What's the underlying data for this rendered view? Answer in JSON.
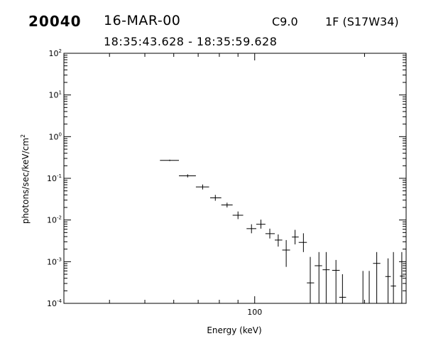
{
  "header": {
    "event_id": "20040",
    "date": "16-MAR-00",
    "goes_class": "C9.0",
    "flare_location": "1F (S17W34)",
    "time_range": "18:35:43.628 - 18:35:59.628"
  },
  "chart_data": {
    "type": "scatter",
    "style": "error-bars",
    "xlabel": "Energy (keV)",
    "ylabel": "photons/sec/keV/cm",
    "ylabel_superscript": "2",
    "x_scale": "log",
    "y_scale": "log",
    "xlim": [
      30,
      260
    ],
    "ylim": [
      0.0001,
      100
    ],
    "x_tick_labels": [
      {
        "value": 100,
        "label": "100"
      }
    ],
    "y_tick_labels": [
      {
        "value": 100,
        "base": "10",
        "exp": "2"
      },
      {
        "value": 10,
        "base": "10",
        "exp": "1"
      },
      {
        "value": 1,
        "base": "10",
        "exp": "0"
      },
      {
        "value": 0.1,
        "base": "10",
        "exp": "-1"
      },
      {
        "value": 0.01,
        "base": "10",
        "exp": "-2"
      },
      {
        "value": 0.001,
        "base": "10",
        "exp": "-3"
      },
      {
        "value": 0.0001,
        "base": "10",
        "exp": "-4"
      }
    ],
    "grid": false,
    "points": [
      {
        "x": 58.5,
        "x_lo": 55.0,
        "x_hi": 62.0,
        "y": 0.27,
        "y_lo": 0.26,
        "y_hi": 0.28
      },
      {
        "x": 65.5,
        "x_lo": 62.0,
        "x_hi": 69.0,
        "y": 0.115,
        "y_lo": 0.105,
        "y_hi": 0.125
      },
      {
        "x": 72.0,
        "x_lo": 69.0,
        "x_hi": 75.0,
        "y": 0.062,
        "y_lo": 0.054,
        "y_hi": 0.071
      },
      {
        "x": 78.0,
        "x_lo": 75.5,
        "x_hi": 81.0,
        "y": 0.034,
        "y_lo": 0.029,
        "y_hi": 0.04
      },
      {
        "x": 84.0,
        "x_lo": 81.0,
        "x_hi": 87.0,
        "y": 0.023,
        "y_lo": 0.02,
        "y_hi": 0.026
      },
      {
        "x": 90.0,
        "x_lo": 87.0,
        "x_hi": 93.0,
        "y": 0.013,
        "y_lo": 0.0105,
        "y_hi": 0.016
      },
      {
        "x": 98.0,
        "x_lo": 95.0,
        "x_hi": 101.0,
        "y": 0.0062,
        "y_lo": 0.0048,
        "y_hi": 0.0079
      },
      {
        "x": 104.0,
        "x_lo": 101.0,
        "x_hi": 107.0,
        "y": 0.0079,
        "y_lo": 0.0062,
        "y_hi": 0.0102
      },
      {
        "x": 110.0,
        "x_lo": 107.0,
        "x_hi": 113.5,
        "y": 0.0047,
        "y_lo": 0.0036,
        "y_hi": 0.0062
      },
      {
        "x": 116.0,
        "x_lo": 113.5,
        "x_hi": 119.0,
        "y": 0.0033,
        "y_lo": 0.0023,
        "y_hi": 0.0045
      },
      {
        "x": 122.0,
        "x_lo": 119.0,
        "x_hi": 125.0,
        "y": 0.0019,
        "y_lo": 0.00075,
        "y_hi": 0.0033
      },
      {
        "x": 129.0,
        "x_lo": 126.5,
        "x_hi": 132.0,
        "y": 0.0039,
        "y_lo": 0.0026,
        "y_hi": 0.0058
      },
      {
        "x": 136.0,
        "x_lo": 132.0,
        "x_hi": 139.0,
        "y": 0.0029,
        "y_lo": 0.0017,
        "y_hi": 0.0048
      },
      {
        "x": 142.0,
        "x_lo": 139.0,
        "x_hi": 145.5,
        "y": 0.00031,
        "y_lo": 0.0001,
        "y_hi": 0.0013
      },
      {
        "x": 150.0,
        "x_lo": 146.0,
        "x_hi": 153.0,
        "y": 0.0008,
        "y_lo": 0.0001,
        "y_hi": 0.0017
      },
      {
        "x": 157.0,
        "x_lo": 153.5,
        "x_hi": 160.5,
        "y": 0.00064,
        "y_lo": 0.0001,
        "y_hi": 0.0017
      },
      {
        "x": 167.0,
        "x_lo": 163.0,
        "x_hi": 171.0,
        "y": 0.00062,
        "y_lo": 0.0001,
        "y_hi": 0.0011
      },
      {
        "x": 174.0,
        "x_lo": 170.5,
        "x_hi": 178.0,
        "y": 0.00014,
        "y_lo": 0.0001,
        "y_hi": 0.0005
      },
      {
        "x": 198.0,
        "x_lo": 198.0,
        "x_hi": 198.0,
        "y": 0.0001,
        "y_lo": 0.0001,
        "y_hi": 0.0006
      },
      {
        "x": 206.0,
        "x_lo": 206.0,
        "x_hi": 206.0,
        "y": 0.0001,
        "y_lo": 0.0001,
        "y_hi": 0.0006
      },
      {
        "x": 216.0,
        "x_lo": 211.0,
        "x_hi": 221.0,
        "y": 0.00091,
        "y_lo": 0.0001,
        "y_hi": 0.0017
      },
      {
        "x": 232.0,
        "x_lo": 228.0,
        "x_hi": 236.0,
        "y": 0.00044,
        "y_lo": 0.0001,
        "y_hi": 0.0012
      },
      {
        "x": 240.0,
        "x_lo": 236.0,
        "x_hi": 244.0,
        "y": 0.00026,
        "y_lo": 0.0001,
        "y_hi": 0.0017
      },
      {
        "x": 253.0,
        "x_lo": 250.0,
        "x_hi": 258.0,
        "y": 0.00045,
        "y_lo": 0.0001,
        "y_hi": 0.0017
      }
    ]
  }
}
